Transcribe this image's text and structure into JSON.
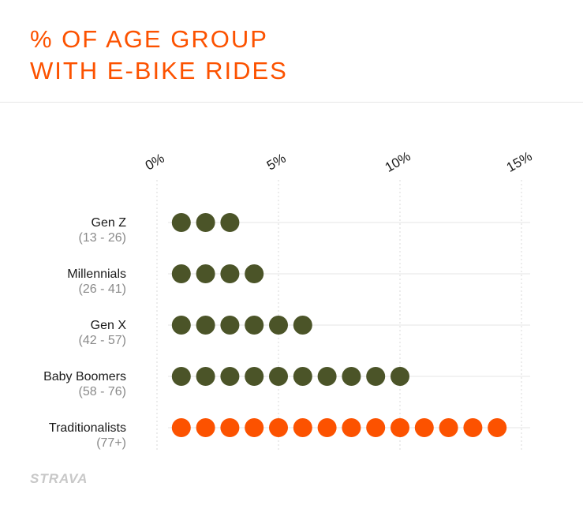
{
  "chart_data": {
    "type": "dot",
    "title_lines": [
      "% OF AGE GROUP",
      "WITH E-BIKE RIDES"
    ],
    "x_ticks": [
      "0%",
      "5%",
      "10%",
      "15%"
    ],
    "xlim": [
      0,
      15
    ],
    "categories": [
      {
        "name": "Gen Z",
        "range": "(13 - 26)",
        "value": 3
      },
      {
        "name": "Millennials",
        "range": "(26 - 41)",
        "value": 4
      },
      {
        "name": "Gen X",
        "range": "(42 - 57)",
        "value": 6
      },
      {
        "name": "Baby Boomers",
        "range": "(58 - 76)",
        "value": 10
      },
      {
        "name": "Traditionalists",
        "range": "(77+)",
        "value": 14
      }
    ],
    "colors": {
      "default": "#4b5428",
      "highlight": "#fc5200",
      "highlight_category": "Traditionalists",
      "title": "#fc5200"
    }
  },
  "brand": {
    "logo_text": "STRAVA"
  }
}
